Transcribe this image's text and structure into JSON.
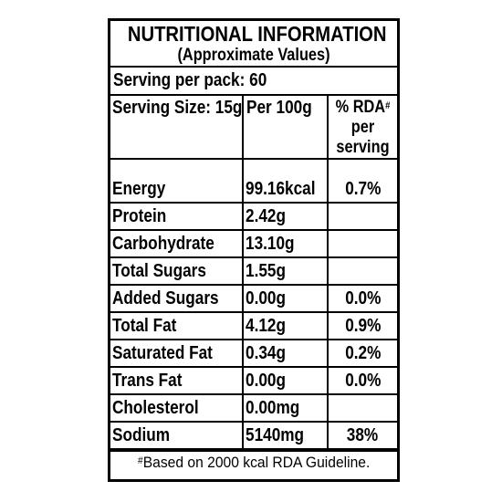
{
  "panel": {
    "title": "NUTRITIONAL INFORMATION",
    "subtitle": "(Approximate Values)",
    "serving_per_pack": "Serving per pack: 60"
  },
  "columns": {
    "serving_size": "Serving Size: 15g",
    "per_100g": "Per 100g",
    "rda_prefix": "% RDA",
    "rda_marker": "#",
    "rda_suffix": "per serving"
  },
  "rows": [
    {
      "name": "Energy",
      "per_100g": "99.16kcal",
      "rda": "0.7%"
    },
    {
      "name": "Protein",
      "per_100g": "2.42g",
      "rda": ""
    },
    {
      "name": "Carbohydrate",
      "per_100g": "13.10g",
      "rda": ""
    },
    {
      "name": "Total Sugars",
      "per_100g": "1.55g",
      "rda": ""
    },
    {
      "name": "Added Sugars",
      "per_100g": "0.00g",
      "rda": "0.0%"
    },
    {
      "name": "Total Fat",
      "per_100g": "4.12g",
      "rda": "0.9%"
    },
    {
      "name": "Saturated Fat",
      "per_100g": "0.34g",
      "rda": "0.2%"
    },
    {
      "name": "Trans Fat",
      "per_100g": "0.00g",
      "rda": "0.0%"
    },
    {
      "name": "Cholesterol",
      "per_100g": "0.00mg",
      "rda": ""
    },
    {
      "name": "Sodium",
      "per_100g": "5140mg",
      "rda": "38%"
    }
  ],
  "footnote": {
    "marker": "#",
    "text": "Based on 2000 kcal RDA Guideline."
  }
}
